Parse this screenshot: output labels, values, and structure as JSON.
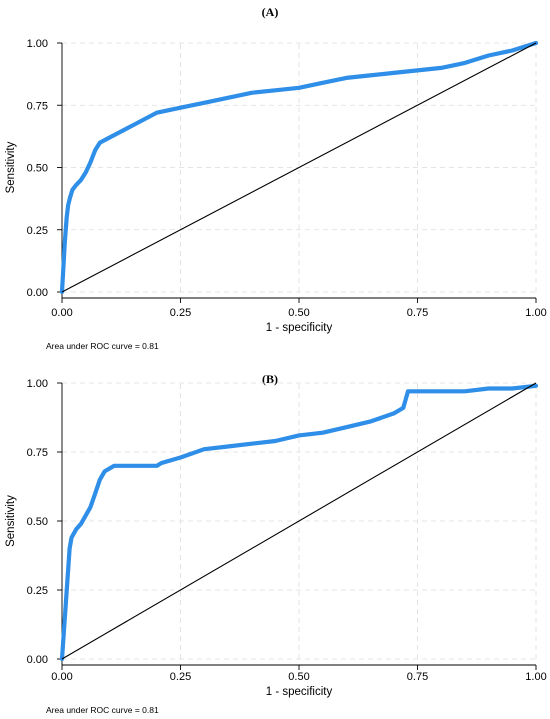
{
  "colors": {
    "roc": "#2e8ee8",
    "reference": "#000000"
  },
  "chart_data": [
    {
      "type": "line",
      "panel_label": "(A)",
      "xlabel": "1 - specificity",
      "ylabel": "Sensitivity",
      "annotation": "Area under ROC curve = 0.81",
      "xlim": [
        0,
        1
      ],
      "ylim": [
        0,
        1
      ],
      "grid": true,
      "x_ticks": [
        "0.00",
        "0.25",
        "0.50",
        "0.75",
        "1.00"
      ],
      "y_ticks": [
        "0.00",
        "0.25",
        "0.50",
        "0.75",
        "1.00"
      ],
      "series": [
        {
          "role": "roc",
          "x": [
            0,
            0.003,
            0.006,
            0.01,
            0.013,
            0.017,
            0.022,
            0.03,
            0.04,
            0.05,
            0.06,
            0.07,
            0.08,
            0.09,
            0.1,
            0.12,
            0.15,
            0.18,
            0.2,
            0.25,
            0.3,
            0.35,
            0.4,
            0.45,
            0.5,
            0.55,
            0.6,
            0.65,
            0.7,
            0.75,
            0.8,
            0.85,
            0.9,
            0.95,
            1.0
          ],
          "y": [
            0,
            0.1,
            0.2,
            0.3,
            0.35,
            0.38,
            0.41,
            0.43,
            0.45,
            0.48,
            0.52,
            0.57,
            0.6,
            0.61,
            0.62,
            0.64,
            0.67,
            0.7,
            0.72,
            0.74,
            0.76,
            0.78,
            0.8,
            0.81,
            0.82,
            0.84,
            0.86,
            0.87,
            0.88,
            0.89,
            0.9,
            0.92,
            0.95,
            0.97,
            1.0
          ]
        },
        {
          "role": "reference",
          "x": [
            0,
            1
          ],
          "y": [
            0,
            1
          ]
        }
      ]
    },
    {
      "type": "line",
      "panel_label": "(B)",
      "xlabel": "1 - specificity",
      "ylabel": "Sensitivity",
      "annotation": "Area under ROC curve = 0.81",
      "xlim": [
        0,
        1
      ],
      "ylim": [
        0,
        1
      ],
      "grid": true,
      "x_ticks": [
        "0.00",
        "0.25",
        "0.50",
        "0.75",
        "1.00"
      ],
      "y_ticks": [
        "0.00",
        "0.25",
        "0.50",
        "0.75",
        "1.00"
      ],
      "series": [
        {
          "role": "roc",
          "x": [
            0,
            0.004,
            0.008,
            0.012,
            0.016,
            0.02,
            0.03,
            0.04,
            0.05,
            0.06,
            0.07,
            0.08,
            0.09,
            0.1,
            0.11,
            0.12,
            0.15,
            0.2,
            0.21,
            0.25,
            0.3,
            0.35,
            0.4,
            0.45,
            0.5,
            0.55,
            0.6,
            0.65,
            0.7,
            0.72,
            0.73,
            0.8,
            0.85,
            0.9,
            0.95,
            1.0
          ],
          "y": [
            0,
            0.1,
            0.2,
            0.3,
            0.4,
            0.44,
            0.47,
            0.49,
            0.52,
            0.55,
            0.6,
            0.65,
            0.68,
            0.69,
            0.7,
            0.7,
            0.7,
            0.7,
            0.71,
            0.73,
            0.76,
            0.77,
            0.78,
            0.79,
            0.81,
            0.82,
            0.84,
            0.86,
            0.89,
            0.91,
            0.97,
            0.97,
            0.97,
            0.98,
            0.98,
            0.99
          ]
        },
        {
          "role": "reference",
          "x": [
            0,
            1
          ],
          "y": [
            0,
            1
          ]
        }
      ]
    }
  ]
}
